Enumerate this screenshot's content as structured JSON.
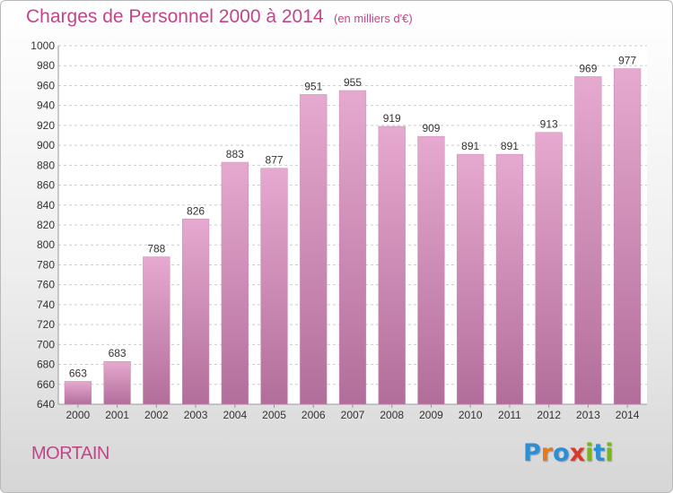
{
  "header": {
    "title": "Charges de Personnel 2000 à 2014",
    "subtitle": "(en milliers d'€)"
  },
  "footer": {
    "place": "MORTAIN",
    "logo": [
      "P",
      "r",
      "o",
      "x",
      "i",
      "t",
      "i"
    ],
    "logo_colors": [
      "#2b8fd6",
      "#e8791d",
      "#2b8fd6",
      "#d93a2c",
      "#7ab51d",
      "#2b8fd6",
      "#7ab51d"
    ]
  },
  "colors": {
    "bar_light": "#e6a9cf",
    "bar_dark": "#b26e9a",
    "accent": "#c2458a",
    "grid": "#cccccc"
  },
  "chart_data": {
    "type": "bar",
    "title": "Charges de Personnel 2000 à 2014",
    "subtitle": "(en milliers d'€)",
    "categories": [
      "2000",
      "2001",
      "2002",
      "2003",
      "2004",
      "2005",
      "2006",
      "2007",
      "2008",
      "2009",
      "2010",
      "2011",
      "2012",
      "2013",
      "2014"
    ],
    "values": [
      663,
      683,
      788,
      826,
      883,
      877,
      951,
      955,
      919,
      909,
      891,
      891,
      913,
      969,
      977
    ],
    "ylim": [
      640,
      1000
    ],
    "yticks": [
      640,
      660,
      680,
      700,
      720,
      740,
      760,
      780,
      800,
      820,
      840,
      860,
      880,
      900,
      920,
      940,
      960,
      980,
      1000
    ],
    "grid": true,
    "data_labels": true
  }
}
